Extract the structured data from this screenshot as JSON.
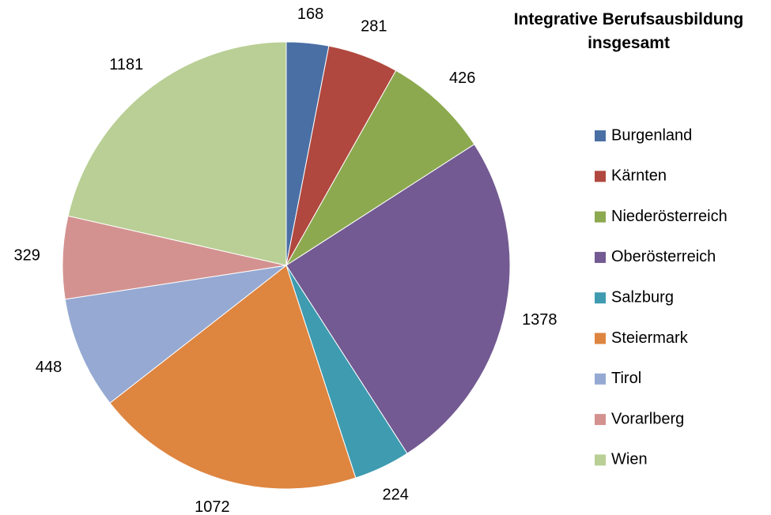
{
  "chart_data": {
    "type": "pie",
    "title": "Integrative Berufsausbildung insgesamt",
    "categories": [
      "Burgenland",
      "Kärnten",
      "Niederösterreich",
      "Oberösterreich",
      "Salzburg",
      "Steiermark",
      "Tirol",
      "Vorarlberg",
      "Wien"
    ],
    "values": [
      168,
      281,
      426,
      1378,
      224,
      1072,
      448,
      329,
      1181
    ],
    "colors": [
      "#4A6FA5",
      "#B0483F",
      "#8CA94F",
      "#735A92",
      "#3E9BB0",
      "#DE8540",
      "#95A9D2",
      "#D39290",
      "#B9CF95"
    ],
    "legend": "right"
  }
}
